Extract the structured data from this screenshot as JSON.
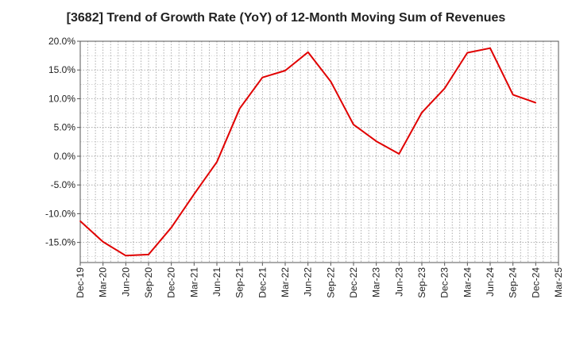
{
  "chart_data": {
    "type": "line",
    "title": "[3682]  Trend of Growth Rate (YoY) of 12-Month Moving Sum of Revenues",
    "xlabel": "",
    "ylabel": "",
    "ylim": [
      -18.5,
      20.0
    ],
    "yticks": [
      20.0,
      15.0,
      10.0,
      5.0,
      0.0,
      -5.0,
      -10.0,
      -15.0
    ],
    "ytick_labels": [
      "20.0%",
      "15.0%",
      "10.0%",
      "5.0%",
      "0.0%",
      "-5.0%",
      "-10.0%",
      "-15.0%"
    ],
    "categories": [
      "Dec-19",
      "Mar-20",
      "Jun-20",
      "Sep-20",
      "Dec-20",
      "Mar-21",
      "Jun-21",
      "Sep-21",
      "Dec-21",
      "Mar-22",
      "Jun-22",
      "Sep-22",
      "Dec-22",
      "Mar-23",
      "Jun-23",
      "Sep-23",
      "Dec-23",
      "Mar-24",
      "Jun-24",
      "Sep-24",
      "Dec-24",
      "Mar-25"
    ],
    "grid": true,
    "grid_style": "dotted",
    "series": [
      {
        "color": "#e00000",
        "values": [
          -11.3,
          -14.9,
          -17.3,
          -17.1,
          -12.4,
          -6.6,
          -1.0,
          8.3,
          13.7,
          14.9,
          18.1,
          13.0,
          5.5,
          2.6,
          0.4,
          7.6,
          11.8,
          18.0,
          18.8,
          10.7,
          9.3,
          null
        ]
      }
    ]
  }
}
